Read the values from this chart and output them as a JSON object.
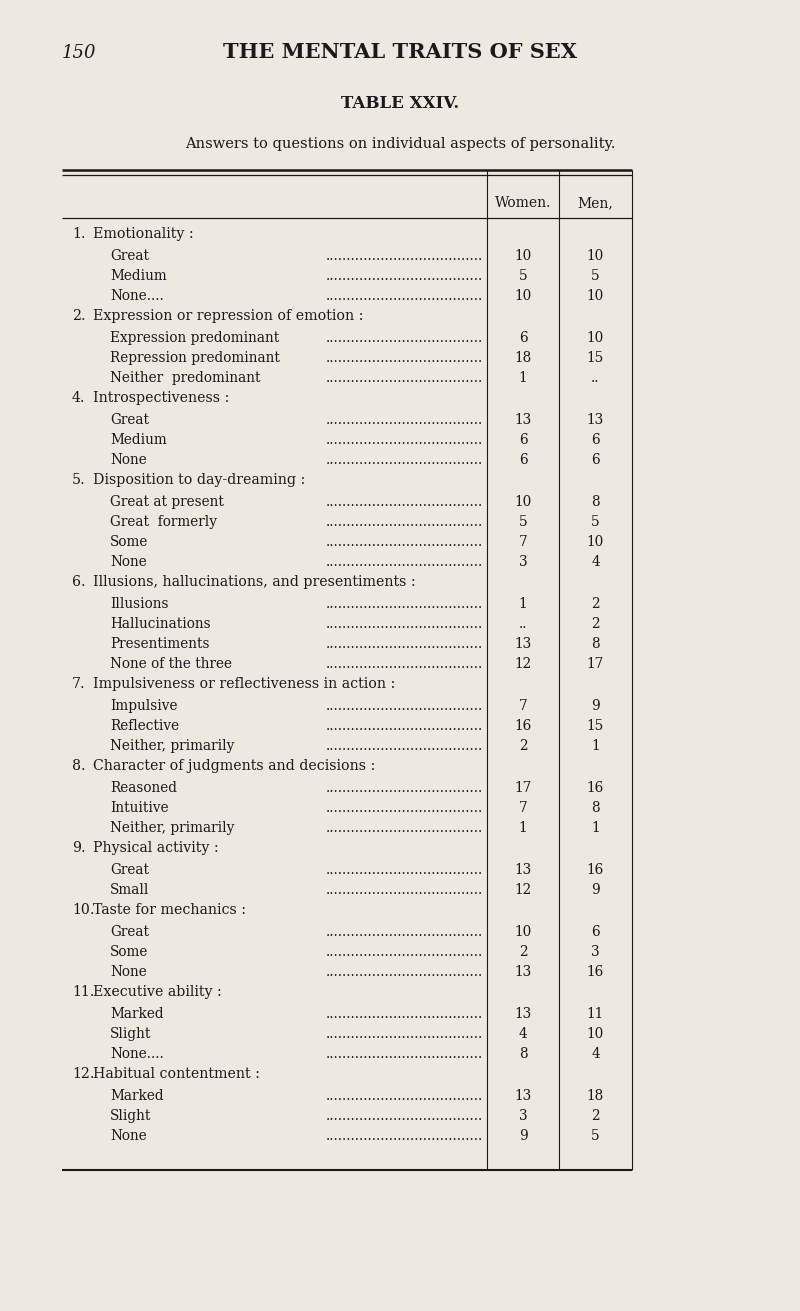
{
  "page_number": "150",
  "page_title": "THE MENTAL TRAITS OF SEX",
  "table_title": "TABLE XXIV.",
  "subtitle": "Answers to questions on individual aspects of personality.",
  "col_headers": [
    "Women.",
    "Men,"
  ],
  "background_color": "#ede8e0",
  "text_color": "#1a1a1a",
  "rows": [
    {
      "type": "section",
      "num": "1.",
      "text": "Emotionality :"
    },
    {
      "type": "data",
      "label": "Great",
      "dots": true,
      "women": "10",
      "men": "10"
    },
    {
      "type": "data",
      "label": "Medium",
      "dots": true,
      "women": "5",
      "men": "5"
    },
    {
      "type": "data",
      "label": "None....",
      "dots": true,
      "women": "10",
      "men": "10"
    },
    {
      "type": "section",
      "num": "2.",
      "text": "Expression or repression of emotion :"
    },
    {
      "type": "data",
      "label": "Expression predominant",
      "dots": true,
      "women": "6",
      "men": "10"
    },
    {
      "type": "data",
      "label": "Repression predominant",
      "dots": true,
      "women": "18",
      "men": "15"
    },
    {
      "type": "data",
      "label": "Neither  predominant",
      "dots": true,
      "women": "1",
      "men": ".."
    },
    {
      "type": "section",
      "num": "4.",
      "text": "Introspectiveness :"
    },
    {
      "type": "data",
      "label": "Great",
      "dots": true,
      "women": "13",
      "men": "13"
    },
    {
      "type": "data",
      "label": "Medium",
      "dots": true,
      "women": "6",
      "men": "6"
    },
    {
      "type": "data",
      "label": "None",
      "dots": true,
      "women": "6",
      "men": "6"
    },
    {
      "type": "section",
      "num": "5.",
      "text": "Disposition to day-dreaming :"
    },
    {
      "type": "data",
      "label": "Great at present",
      "dots": true,
      "women": "10",
      "men": "8"
    },
    {
      "type": "data",
      "label": "Great  formerly",
      "dots": true,
      "women": "5",
      "men": "5"
    },
    {
      "type": "data",
      "label": "Some",
      "dots": true,
      "women": "7",
      "men": "10"
    },
    {
      "type": "data",
      "label": "None",
      "dots": true,
      "women": "3",
      "men": "4"
    },
    {
      "type": "section",
      "num": "6.",
      "text": "Illusions, hallucinations, and presentiments :"
    },
    {
      "type": "data",
      "label": "Illusions",
      "dots": true,
      "women": "1",
      "men": "2"
    },
    {
      "type": "data",
      "label": "Hallucinations",
      "dots": true,
      "women": "..",
      "men": "2"
    },
    {
      "type": "data",
      "label": "Presentiments",
      "dots": true,
      "women": "13",
      "men": "8"
    },
    {
      "type": "data",
      "label": "None of the three",
      "dots": true,
      "women": "12",
      "men": "17"
    },
    {
      "type": "section",
      "num": "7.",
      "text": "Impulsiveness or reflectiveness in action :"
    },
    {
      "type": "data",
      "label": "Impulsive",
      "dots": true,
      "women": "7",
      "men": "9"
    },
    {
      "type": "data",
      "label": "Reflective",
      "dots": true,
      "women": "16",
      "men": "15"
    },
    {
      "type": "data",
      "label": "Neither, primarily",
      "dots": true,
      "women": "2",
      "men": "1"
    },
    {
      "type": "section",
      "num": "8.",
      "text": "Character of judgments and decisions :"
    },
    {
      "type": "data",
      "label": "Reasoned",
      "dots": true,
      "women": "17",
      "men": "16"
    },
    {
      "type": "data",
      "label": "Intuitive",
      "dots": true,
      "women": "7",
      "men": "8"
    },
    {
      "type": "data",
      "label": "Neither, primarily",
      "dots": true,
      "women": "1",
      "men": "1"
    },
    {
      "type": "section",
      "num": "9.",
      "text": "Physical activity :"
    },
    {
      "type": "data",
      "label": "Great",
      "dots": true,
      "women": "13",
      "men": "16"
    },
    {
      "type": "data",
      "label": "Small",
      "dots": true,
      "women": "12",
      "men": "9"
    },
    {
      "type": "section",
      "num": "10.",
      "text": "Taste for mechanics :"
    },
    {
      "type": "data",
      "label": "Great",
      "dots": true,
      "women": "10",
      "men": "6"
    },
    {
      "type": "data",
      "label": "Some",
      "dots": true,
      "women": "2",
      "men": "3"
    },
    {
      "type": "data",
      "label": "None",
      "dots": true,
      "women": "13",
      "men": "16"
    },
    {
      "type": "section",
      "num": "11.",
      "text": "Executive ability :"
    },
    {
      "type": "data",
      "label": "Marked",
      "dots": true,
      "women": "13",
      "men": "11"
    },
    {
      "type": "data",
      "label": "Slight",
      "dots": true,
      "women": "4",
      "men": "10"
    },
    {
      "type": "data",
      "label": "None....",
      "dots": true,
      "women": "8",
      "men": "4"
    },
    {
      "type": "section",
      "num": "12.",
      "text": "Habitual contentment :"
    },
    {
      "type": "data",
      "label": "Marked",
      "dots": true,
      "women": "13",
      "men": "18"
    },
    {
      "type": "data",
      "label": "Slight",
      "dots": true,
      "women": "3",
      "men": "2"
    },
    {
      "type": "data",
      "label": "None",
      "dots": true,
      "women": "9",
      "men": "5"
    }
  ]
}
